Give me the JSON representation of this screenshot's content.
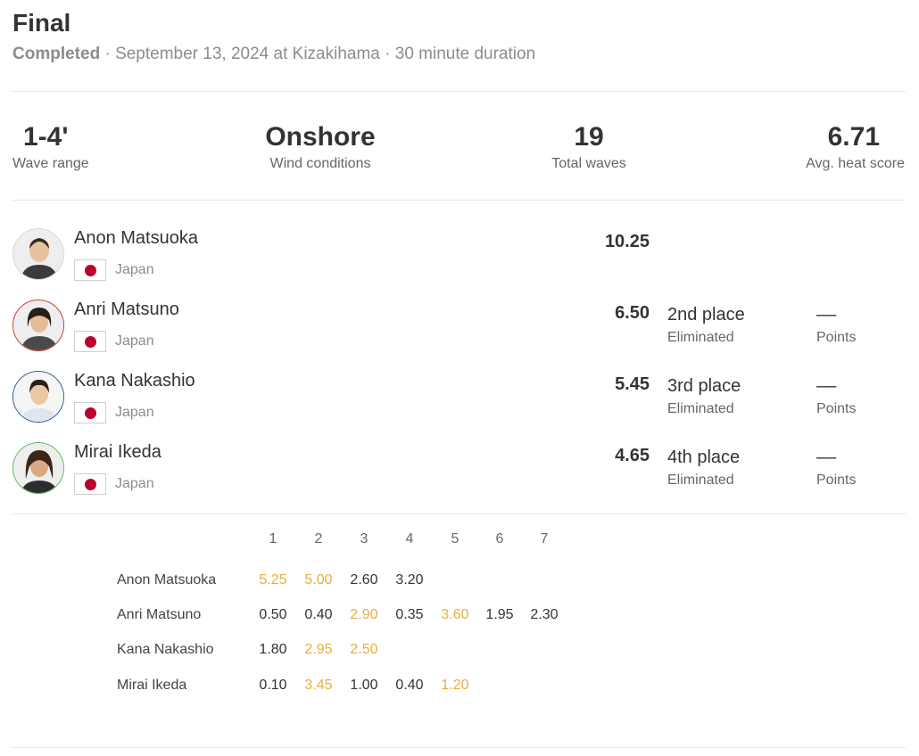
{
  "header": {
    "title": "Final",
    "status": "Completed",
    "details": " · September 13, 2024 at Kizakihama · 30 minute duration"
  },
  "stats": [
    {
      "value": "1-4'",
      "label": "Wave range"
    },
    {
      "value": "Onshore",
      "label": "Wind conditions"
    },
    {
      "value": "19",
      "label": "Total waves"
    },
    {
      "value": "6.71",
      "label": "Avg. heat score"
    }
  ],
  "surfers": [
    {
      "name": "Anon Matsuoka",
      "country": "Japan",
      "score": "10.25",
      "place": "",
      "place_status": "",
      "points": "",
      "points_label": "",
      "ring_color": "#d9d9d9",
      "flag": "japan-flag-icon"
    },
    {
      "name": "Anri Matsuno",
      "country": "Japan",
      "score": "6.50",
      "place": "2nd place",
      "place_status": "Eliminated",
      "points": "––",
      "points_label": "Points",
      "ring_color": "#c0392b",
      "flag": "japan-flag-icon"
    },
    {
      "name": "Kana Nakashio",
      "country": "Japan",
      "score": "5.45",
      "place": "3rd place",
      "place_status": "Eliminated",
      "points": "––",
      "points_label": "Points",
      "ring_color": "#2c5aa0",
      "flag": "japan-flag-icon"
    },
    {
      "name": "Mirai Ikeda",
      "country": "Japan",
      "score": "4.65",
      "place": "4th place",
      "place_status": "Eliminated",
      "points": "––",
      "points_label": "Points",
      "ring_color": "#5cb85c",
      "flag": "japan-flag-icon"
    }
  ],
  "wave_grid": {
    "headers": [
      "1",
      "2",
      "3",
      "4",
      "5",
      "6",
      "7"
    ],
    "highlight_color": "#e8ad3e",
    "rows": [
      {
        "name": "Anon Matsuoka",
        "scores": [
          "5.25",
          "5.00",
          "2.60",
          "3.20"
        ],
        "counted": [
          true,
          true,
          false,
          false
        ]
      },
      {
        "name": "Anri Matsuno",
        "scores": [
          "0.50",
          "0.40",
          "2.90",
          "0.35",
          "3.60",
          "1.95",
          "2.30"
        ],
        "counted": [
          false,
          false,
          true,
          false,
          true,
          false,
          false
        ]
      },
      {
        "name": "Kana Nakashio",
        "scores": [
          "1.80",
          "2.95",
          "2.50"
        ],
        "counted": [
          false,
          true,
          true
        ]
      },
      {
        "name": "Mirai Ikeda",
        "scores": [
          "0.10",
          "3.45",
          "1.00",
          "0.40",
          "1.20"
        ],
        "counted": [
          false,
          true,
          false,
          false,
          true
        ]
      }
    ]
  }
}
